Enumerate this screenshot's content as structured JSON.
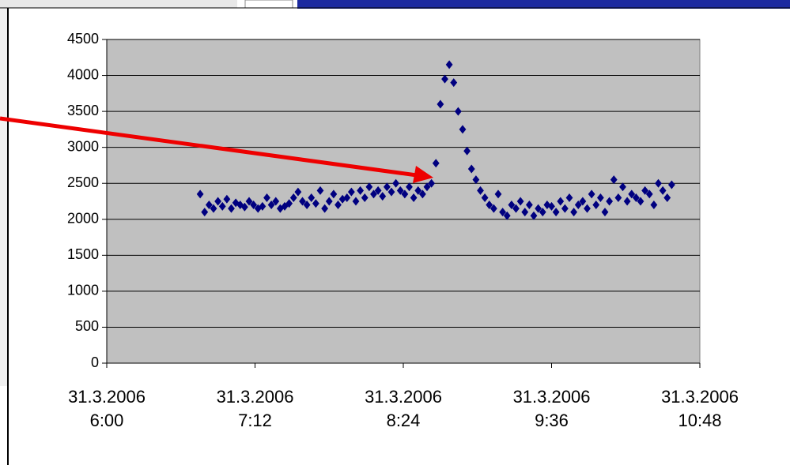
{
  "chart_data": {
    "type": "scatter",
    "x": [
      38807.2815,
      38807.283,
      38807.2845,
      38807.286,
      38807.2875,
      38807.289,
      38807.2905,
      38807.292,
      38807.2935,
      38807.295,
      38807.2965,
      38807.298,
      38807.2995,
      38807.301,
      38807.3025,
      38807.304,
      38807.3055,
      38807.307,
      38807.3085,
      38807.31,
      38807.3115,
      38807.313,
      38807.3145,
      38807.316,
      38807.3175,
      38807.319,
      38807.3205,
      38807.322,
      38807.3235,
      38807.325,
      38807.3265,
      38807.328,
      38807.3295,
      38807.331,
      38807.3325,
      38807.334,
      38807.3355,
      38807.337,
      38807.3385,
      38807.34,
      38807.3415,
      38807.343,
      38807.3445,
      38807.346,
      38807.3475,
      38807.349,
      38807.3505,
      38807.352,
      38807.3535,
      38807.355,
      38807.3565,
      38807.358,
      38807.3595,
      38807.361,
      38807.3625,
      38807.364,
      38807.3655,
      38807.367,
      38807.3685,
      38807.37,
      38807.3715,
      38807.373,
      38807.3745,
      38807.376,
      38807.3775,
      38807.379,
      38807.3805,
      38807.382,
      38807.3835,
      38807.385,
      38807.3865,
      38807.388,
      38807.3895,
      38807.391,
      38807.3925,
      38807.394,
      38807.3955,
      38807.397,
      38807.3985,
      38807.4,
      38807.4015,
      38807.403,
      38807.4045,
      38807.406,
      38807.4075,
      38807.409,
      38807.4105,
      38807.412,
      38807.4135,
      38807.415,
      38807.4165,
      38807.418,
      38807.4195,
      38807.421,
      38807.4225,
      38807.424,
      38807.4255,
      38807.427,
      38807.4285,
      38807.43,
      38807.4315,
      38807.433,
      38807.4345,
      38807.436,
      38807.4375,
      38807.439,
      38807.4405
    ],
    "series": [
      {
        "color": "#000080",
        "values": [
          2350,
          2100,
          2200,
          2150,
          2250,
          2180,
          2280,
          2150,
          2230,
          2200,
          2170,
          2250,
          2200,
          2150,
          2180,
          2300,
          2200,
          2250,
          2150,
          2180,
          2220,
          2300,
          2380,
          2250,
          2200,
          2300,
          2220,
          2400,
          2150,
          2250,
          2350,
          2200,
          2280,
          2300,
          2380,
          2250,
          2400,
          2300,
          2450,
          2350,
          2400,
          2320,
          2450,
          2380,
          2500,
          2400,
          2350,
          2450,
          2300,
          2400,
          2350,
          2450,
          2500,
          2780,
          3600,
          3950,
          4150,
          3900,
          3500,
          3250,
          2950,
          2700,
          2550,
          2400,
          2300,
          2200,
          2150,
          2350,
          2100,
          2050,
          2200,
          2150,
          2250,
          2100,
          2200,
          2050,
          2150,
          2100,
          2200,
          2180,
          2100,
          2250,
          2150,
          2300,
          2100,
          2200,
          2250,
          2150,
          2350,
          2200,
          2300,
          2100,
          2250,
          2550,
          2300,
          2450,
          2250,
          2350,
          2300,
          2250,
          2400,
          2350,
          2200,
          2500,
          2400,
          2300,
          2480
        ]
      }
    ],
    "xlim": [
      38807.25,
      38807.45
    ],
    "xticks": [
      {
        "value": 38807.25,
        "label": "31.3.2006\n6:00"
      },
      {
        "value": 38807.3,
        "label": "31.3.2006\n7:12"
      },
      {
        "value": 38807.35,
        "label": "31.3.2006\n8:24"
      },
      {
        "value": 38807.4,
        "label": "31.3.2006\n9:36"
      },
      {
        "value": 38807.45,
        "label": "31.3.2006\n10:48"
      }
    ],
    "ylim": [
      0,
      4500
    ],
    "yticks": [
      0,
      500,
      1000,
      1500,
      2000,
      2500,
      3000,
      3500,
      4000,
      4500
    ],
    "grid": true
  }
}
